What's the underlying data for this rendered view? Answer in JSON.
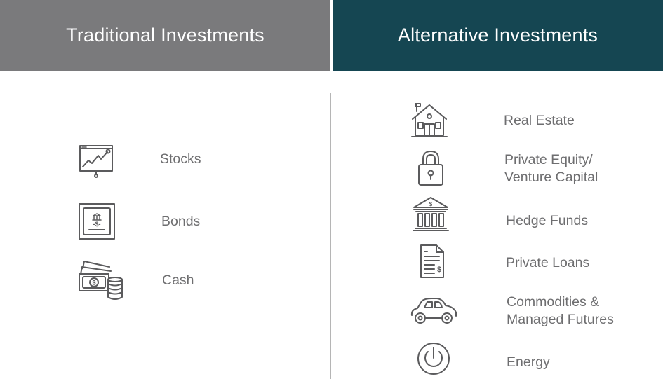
{
  "headers": {
    "traditional": "Traditional Investments",
    "alternative": "Alternative Investments"
  },
  "traditional": [
    {
      "icon": "chart-presentation-icon",
      "label": "Stocks"
    },
    {
      "icon": "bond-certificate-icon",
      "label": "Bonds"
    },
    {
      "icon": "cash-coins-icon",
      "label": "Cash"
    }
  ],
  "alternative": [
    {
      "icon": "house-icon",
      "label_1": "Real Estate"
    },
    {
      "icon": "padlock-icon",
      "label_1": "Private Equity/",
      "label_2": "Venture Capital"
    },
    {
      "icon": "bank-building-icon",
      "label_1": "Hedge Funds"
    },
    {
      "icon": "document-dollar-icon",
      "label_1": "Private Loans"
    },
    {
      "icon": "car-icon",
      "label_1": "Commodities &",
      "label_2": "Managed Futures"
    },
    {
      "icon": "power-icon",
      "label_1": "Energy"
    }
  ],
  "colors": {
    "traditional_header": "#7a7a7c",
    "alternative_header": "#154652",
    "icon": "#5b5b5d",
    "label": "#6e6e70"
  }
}
